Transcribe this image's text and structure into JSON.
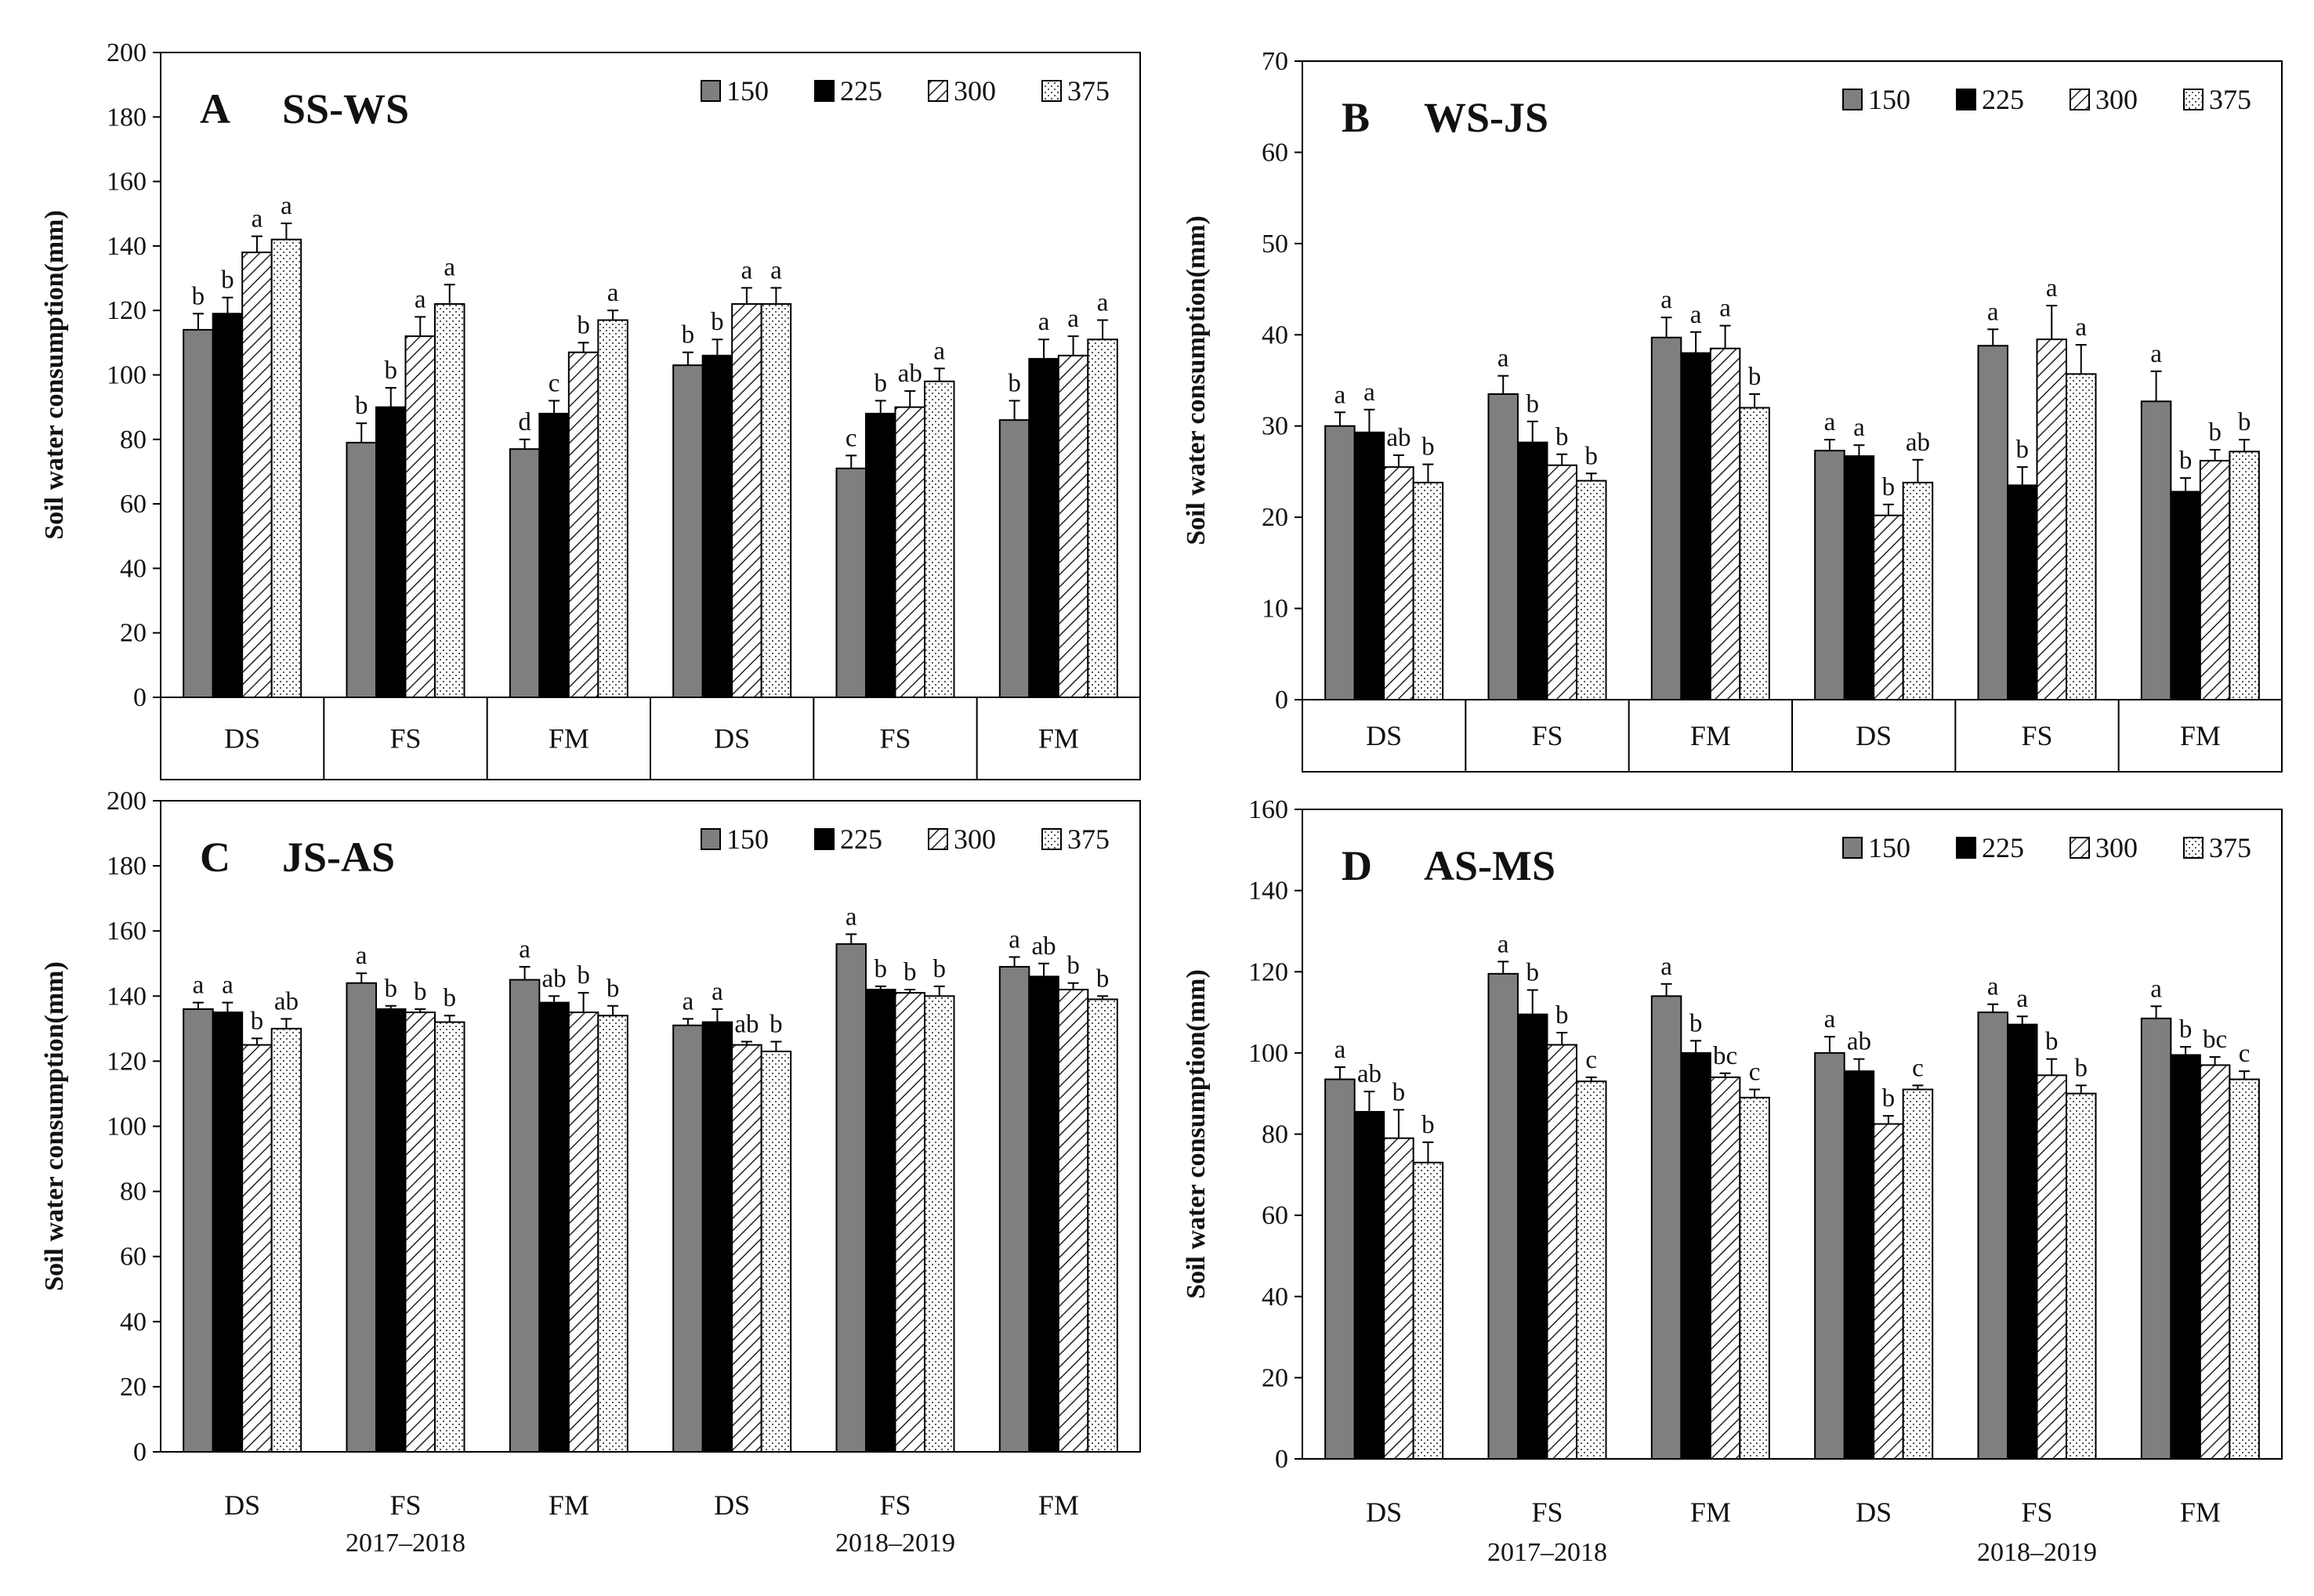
{
  "chart_data": [
    {
      "type": "bar",
      "panel_letter": "A",
      "title": "SS-WS",
      "ylabel": "Soil water consumption(mm)",
      "ylim": [
        0,
        200
      ],
      "yticks": [
        0,
        20,
        40,
        60,
        80,
        100,
        120,
        140,
        160,
        180,
        200
      ],
      "categories": [
        "DS",
        "FS",
        "FM",
        "DS",
        "FS",
        "FM"
      ],
      "year_labels": [],
      "series": [
        {
          "name": "150",
          "values": [
            114,
            79,
            77,
            103,
            71,
            86
          ],
          "errors": [
            5,
            6,
            3,
            4,
            4,
            6
          ],
          "sig": [
            "b",
            "b",
            "d",
            "b",
            "c",
            "b"
          ]
        },
        {
          "name": "225",
          "values": [
            119,
            90,
            88,
            106,
            88,
            105
          ],
          "errors": [
            5,
            6,
            4,
            5,
            4,
            6
          ],
          "sig": [
            "b",
            "b",
            "c",
            "b",
            "b",
            "a"
          ]
        },
        {
          "name": "300",
          "values": [
            138,
            112,
            107,
            122,
            90,
            106
          ],
          "errors": [
            5,
            6,
            3,
            5,
            5,
            6
          ],
          "sig": [
            "a",
            "a",
            "b",
            "a",
            "ab",
            "a"
          ]
        },
        {
          "name": "375",
          "values": [
            142,
            122,
            117,
            122,
            98,
            111
          ],
          "errors": [
            5,
            6,
            3,
            5,
            4,
            6
          ],
          "sig": [
            "a",
            "a",
            "a",
            "a",
            "a",
            "a"
          ]
        }
      ]
    },
    {
      "type": "bar",
      "panel_letter": "B",
      "title": "WS-JS",
      "ylabel": "Soil water consumption(mm)",
      "ylim": [
        0,
        70
      ],
      "yticks": [
        0,
        10,
        20,
        30,
        40,
        50,
        60,
        70
      ],
      "categories": [
        "DS",
        "FS",
        "FM",
        "DS",
        "FS",
        "FM"
      ],
      "year_labels": [],
      "series": [
        {
          "name": "150",
          "values": [
            30,
            33.5,
            39.7,
            27.3,
            38.8,
            32.7
          ],
          "errors": [
            1.5,
            2,
            2.2,
            1.2,
            1.8,
            3.3
          ],
          "sig": [
            "a",
            "a",
            "a",
            "a",
            "a",
            "a"
          ]
        },
        {
          "name": "225",
          "values": [
            29.3,
            28.2,
            38,
            26.7,
            23.5,
            22.8
          ],
          "errors": [
            2.5,
            2.3,
            2.3,
            1.2,
            2,
            1.5
          ],
          "sig": [
            "a",
            "b",
            "a",
            "a",
            "b",
            "b"
          ]
        },
        {
          "name": "300",
          "values": [
            25.5,
            25.7,
            38.5,
            20.2,
            39.5,
            26.2
          ],
          "errors": [
            1.3,
            1.2,
            2.5,
            1.2,
            3.7,
            1.2
          ],
          "sig": [
            "ab",
            "b",
            "a",
            "b",
            "a",
            "b"
          ]
        },
        {
          "name": "375",
          "values": [
            23.8,
            24,
            32,
            23.8,
            35.7,
            27.2
          ],
          "errors": [
            2,
            0.8,
            1.5,
            2.5,
            3.2,
            1.3
          ],
          "sig": [
            "b",
            "b",
            "b",
            "ab",
            "a",
            "b"
          ]
        }
      ]
    },
    {
      "type": "bar",
      "panel_letter": "C",
      "title": "JS-AS",
      "ylabel": "Soil water consumption(mm)",
      "ylim": [
        0,
        200
      ],
      "yticks": [
        0,
        20,
        40,
        60,
        80,
        100,
        120,
        140,
        160,
        180,
        200
      ],
      "categories": [
        "DS",
        "FS",
        "FM",
        "DS",
        "FS",
        "FM"
      ],
      "year_labels": [
        "2017–2018",
        "2018–2019"
      ],
      "series": [
        {
          "name": "150",
          "values": [
            136,
            144,
            145,
            131,
            156,
            149
          ],
          "errors": [
            2,
            3,
            4,
            2,
            3,
            3
          ],
          "sig": [
            "a",
            "a",
            "a",
            "a",
            "a",
            "a"
          ]
        },
        {
          "name": "225",
          "values": [
            135,
            136,
            138,
            132,
            142,
            146
          ],
          "errors": [
            3,
            1,
            2,
            4,
            1,
            4
          ],
          "sig": [
            "a",
            "b",
            "ab",
            "a",
            "b",
            "ab"
          ]
        },
        {
          "name": "300",
          "values": [
            125,
            135,
            135,
            125,
            141,
            142
          ],
          "errors": [
            2,
            1,
            6,
            1,
            1,
            2
          ],
          "sig": [
            "b",
            "b",
            "b",
            "ab",
            "b",
            "b"
          ]
        },
        {
          "name": "375",
          "values": [
            130,
            132,
            134,
            123,
            140,
            139
          ],
          "errors": [
            3,
            2,
            3,
            3,
            3,
            1
          ],
          "sig": [
            "ab",
            "b",
            "b",
            "b",
            "b",
            "b"
          ]
        }
      ]
    },
    {
      "type": "bar",
      "panel_letter": "D",
      "title": "AS-MS",
      "ylabel": "Soil water consumption(mm)",
      "ylim": [
        0,
        160
      ],
      "yticks": [
        0,
        20,
        40,
        60,
        80,
        100,
        120,
        140,
        160
      ],
      "categories": [
        "DS",
        "FS",
        "FM",
        "DS",
        "FS",
        "FM"
      ],
      "year_labels": [
        "2017–2018",
        "2018–2019"
      ],
      "series": [
        {
          "name": "150",
          "values": [
            93.5,
            119.5,
            114,
            100,
            110,
            108.5
          ],
          "errors": [
            3,
            3,
            3,
            4,
            2,
            3
          ],
          "sig": [
            "a",
            "a",
            "a",
            "a",
            "a",
            "a"
          ]
        },
        {
          "name": "225",
          "values": [
            85.5,
            109.5,
            100,
            95.5,
            107,
            99.5
          ],
          "errors": [
            5,
            6,
            3,
            3,
            2,
            2
          ],
          "sig": [
            "ab",
            "b",
            "b",
            "ab",
            "a",
            "b"
          ]
        },
        {
          "name": "300",
          "values": [
            79,
            102,
            94,
            82.5,
            94.5,
            97
          ],
          "errors": [
            7,
            3,
            1,
            2,
            4,
            2
          ],
          "sig": [
            "b",
            "b",
            "bc",
            "b",
            "b",
            "bc"
          ]
        },
        {
          "name": "375",
          "values": [
            73,
            93,
            89,
            91,
            90,
            93.5
          ],
          "errors": [
            5,
            1,
            2,
            1,
            2,
            2
          ],
          "sig": [
            "b",
            "c",
            "c",
            "c",
            "b",
            "c"
          ]
        }
      ]
    }
  ]
}
